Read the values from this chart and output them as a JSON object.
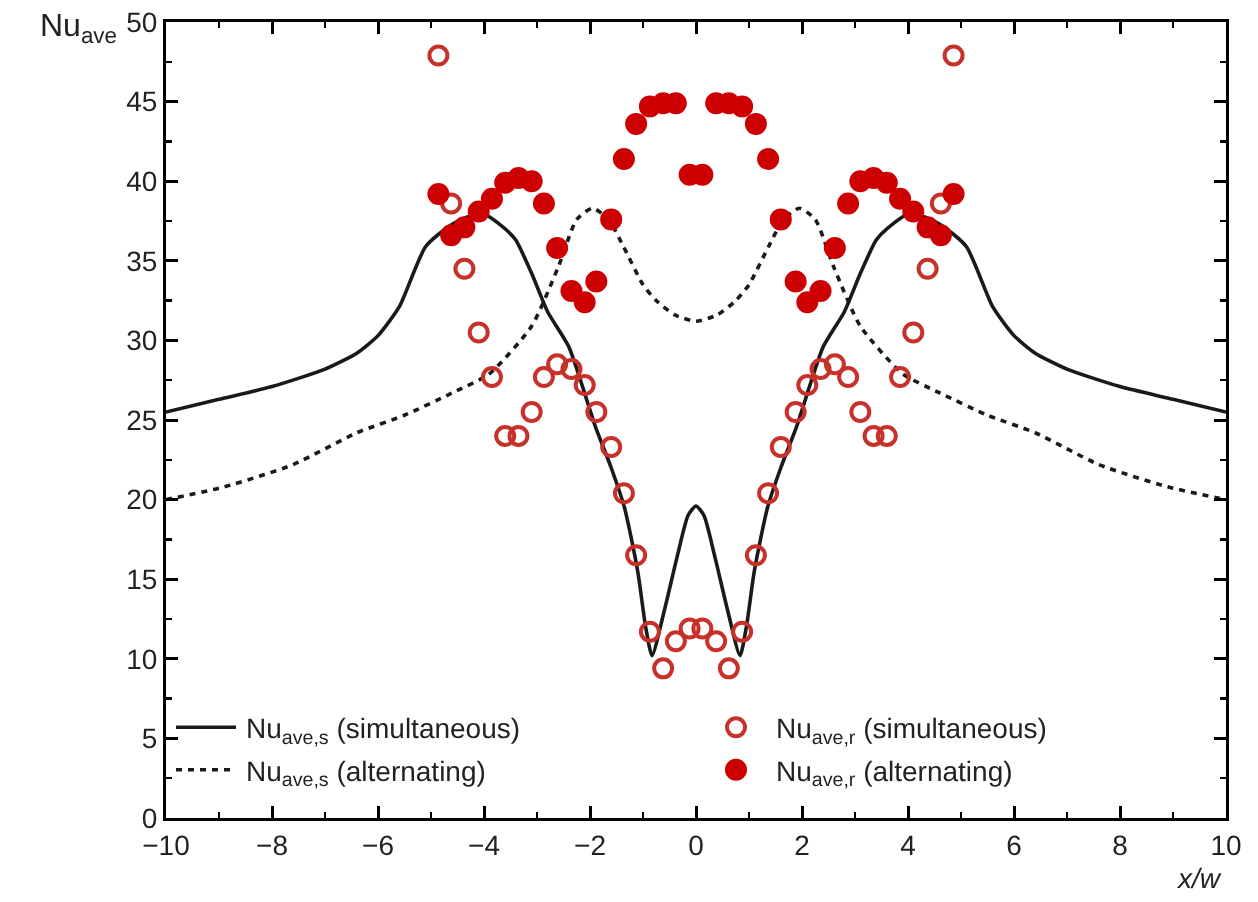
{
  "chart_data": {
    "type": "line",
    "xlabel": "x/w",
    "ylabel": "Nu$_{ave}$",
    "xlim": [
      -10,
      10
    ],
    "xticks": [
      -10,
      -8,
      -6,
      -4,
      -2,
      0,
      2,
      4,
      6,
      8,
      10
    ],
    "ylim": [
      0,
      50
    ],
    "yticks": [
      0,
      5,
      10,
      15,
      20,
      25,
      30,
      35,
      40,
      45,
      50
    ],
    "grid": false,
    "legend": "bottom",
    "series": [
      {
        "name": "Nu$_{ave,s}$ (simultaneous)",
        "line_style": "solid",
        "color": "#1a1a1a",
        "x": [
          -10,
          -9,
          -8,
          -7,
          -6.4,
          -6,
          -5.6,
          -5.1,
          -4.6,
          -4.05,
          -3.6,
          -3.4,
          -3.1,
          -2.8,
          -2.4,
          -1.9,
          -1.6,
          -1.35,
          -1.1,
          -0.95,
          -0.83,
          -0.6,
          -0.35,
          -0.15,
          0,
          0.15,
          0.35,
          0.6,
          0.83,
          0.95,
          1.1,
          1.35,
          1.6,
          1.9,
          2.4,
          2.8,
          3.1,
          3.4,
          3.6,
          4.05,
          4.6,
          5.1,
          5.6,
          6,
          6.4,
          7,
          8,
          9,
          10
        ],
        "values": [
          25.5,
          26.3,
          27.1,
          28.2,
          29.2,
          30.3,
          32.1,
          35.9,
          37.3,
          38.0,
          37.0,
          36.3,
          34.2,
          31.8,
          29.6,
          24.6,
          22.0,
          19.5,
          15.5,
          12.0,
          10.2,
          13.0,
          16.5,
          19.0,
          19.6,
          19.0,
          16.5,
          13.0,
          10.2,
          12.0,
          15.5,
          19.5,
          22.0,
          24.6,
          29.6,
          31.8,
          34.2,
          36.3,
          37.0,
          38.0,
          37.3,
          35.9,
          32.1,
          30.3,
          29.2,
          28.2,
          27.1,
          26.3,
          25.5
        ]
      },
      {
        "name": "Nu$_{ave,s}$ (alternating)",
        "line_style": "dotted",
        "color": "#1a1a1a",
        "x": [
          -10,
          -8.9,
          -7.6,
          -6.4,
          -5.5,
          -4.6,
          -3.9,
          -3.1,
          -2.6,
          -2.25,
          -1.95,
          -1.65,
          -1.37,
          -1,
          -0.75,
          -0.4,
          0,
          0.4,
          0.75,
          1,
          1.37,
          1.65,
          1.95,
          2.25,
          2.6,
          3.1,
          3.9,
          4.6,
          5.5,
          6.4,
          7.6,
          8.9,
          10
        ],
        "values": [
          20.0,
          20.8,
          22.2,
          24.2,
          25.3,
          26.7,
          27.9,
          30.9,
          34.6,
          37.6,
          38.3,
          37.6,
          35.9,
          33.5,
          32.5,
          31.6,
          31.2,
          31.6,
          32.5,
          33.5,
          35.9,
          37.6,
          38.3,
          37.6,
          34.6,
          30.9,
          27.9,
          26.7,
          25.3,
          24.2,
          22.2,
          20.8,
          20.0
        ]
      },
      {
        "name": "Nu$_{ave,r}$ (simultaneous)",
        "type": "scatter",
        "marker": "circle-open",
        "color": "#c8302a",
        "x": [
          -4.86,
          -4.62,
          -4.37,
          -4.1,
          -3.85,
          -3.6,
          -3.35,
          -3.1,
          -2.87,
          -2.62,
          -2.35,
          -2.1,
          -1.88,
          -1.6,
          -1.36,
          -1.13,
          -0.87,
          -0.62,
          -0.38,
          -0.12,
          0.12,
          0.38,
          0.62,
          0.87,
          1.13,
          1.36,
          1.6,
          1.88,
          2.1,
          2.35,
          2.62,
          2.87,
          3.1,
          3.35,
          3.6,
          3.85,
          4.1,
          4.37,
          4.62,
          4.86
        ],
        "values": [
          47.9,
          38.6,
          34.5,
          30.5,
          27.7,
          24.0,
          24.0,
          25.5,
          27.7,
          28.5,
          28.2,
          27.2,
          25.5,
          23.3,
          20.4,
          16.5,
          11.7,
          9.4,
          11.1,
          11.9,
          11.9,
          11.1,
          9.4,
          11.7,
          16.5,
          20.4,
          23.3,
          25.5,
          27.2,
          28.2,
          28.5,
          27.7,
          25.5,
          24.0,
          24.0,
          27.7,
          30.5,
          34.5,
          38.6,
          47.9
        ]
      },
      {
        "name": "Nu$_{ave,r}$ (alternating)",
        "type": "scatter",
        "marker": "circle",
        "color": "#cc0000",
        "x": [
          -4.86,
          -4.62,
          -4.37,
          -4.1,
          -3.85,
          -3.6,
          -3.35,
          -3.1,
          -2.87,
          -2.62,
          -2.35,
          -2.1,
          -1.88,
          -1.6,
          -1.36,
          -1.13,
          -0.87,
          -0.62,
          -0.38,
          -0.12,
          0.12,
          0.38,
          0.62,
          0.87,
          1.13,
          1.36,
          1.6,
          1.88,
          2.1,
          2.35,
          2.62,
          2.87,
          3.1,
          3.35,
          3.6,
          3.85,
          4.1,
          4.37,
          4.62,
          4.86
        ],
        "values": [
          39.2,
          36.6,
          37.1,
          38.1,
          38.9,
          39.9,
          40.2,
          40.0,
          38.6,
          35.8,
          33.1,
          32.4,
          33.7,
          37.6,
          41.4,
          43.6,
          44.7,
          44.9,
          44.9,
          40.4,
          40.4,
          44.9,
          44.9,
          44.7,
          43.6,
          41.4,
          37.6,
          33.7,
          32.4,
          33.1,
          35.8,
          38.6,
          40.0,
          40.2,
          39.9,
          38.9,
          38.1,
          37.1,
          36.6,
          39.2
        ]
      }
    ]
  }
}
